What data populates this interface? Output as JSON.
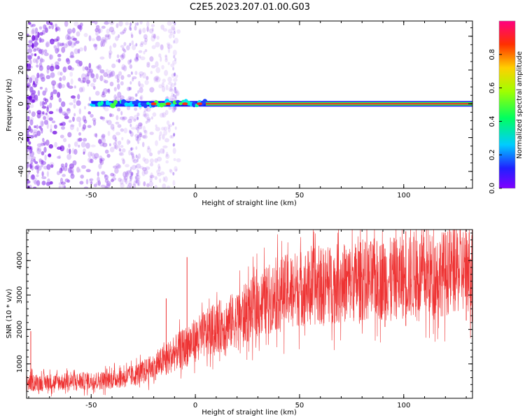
{
  "title": "C2E5.2023.207.01.00.G03",
  "chart_data": [
    {
      "type": "heatmap",
      "xlabel": "Height of straight line (km)",
      "ylabel": "Frequency (Hz)",
      "xlim": [
        -81,
        133
      ],
      "ylim": [
        -50,
        49
      ],
      "xticks": [
        -50,
        0,
        50,
        100
      ],
      "yticks": [
        -40,
        -20,
        0,
        20,
        40
      ],
      "colorbar": {
        "label": "Normalized spectral amplitude",
        "range": [
          0,
          1
        ],
        "ticks": [
          0.0,
          0.2,
          0.4,
          0.6,
          0.8
        ]
      },
      "features": {
        "noise_region_x": [
          -81,
          -20
        ],
        "carrier_start_x": -50,
        "carrier_freq_hz": 0,
        "strong_line_start_x": 5
      }
    },
    {
      "type": "line",
      "xlabel": "Height of straight line (km)",
      "ylabel": "SNR (10 * v/v)",
      "xlim": [
        -81,
        133
      ],
      "ylim": [
        0,
        4900
      ],
      "xticks": [
        -50,
        0,
        50,
        100
      ],
      "yticks": [
        1000,
        2000,
        3000,
        4000
      ],
      "series": [
        {
          "color": "#ee3333",
          "trend": [
            {
              "x": -81,
              "y": 450
            },
            {
              "x": -60,
              "y": 480
            },
            {
              "x": -45,
              "y": 520
            },
            {
              "x": -30,
              "y": 650
            },
            {
              "x": -20,
              "y": 900
            },
            {
              "x": -10,
              "y": 1300
            },
            {
              "x": 0,
              "y": 1700
            },
            {
              "x": 10,
              "y": 2050
            },
            {
              "x": 20,
              "y": 2300
            },
            {
              "x": 30,
              "y": 2700
            },
            {
              "x": 40,
              "y": 3050
            },
            {
              "x": 50,
              "y": 3200
            },
            {
              "x": 60,
              "y": 3250
            },
            {
              "x": 70,
              "y": 3350
            },
            {
              "x": 80,
              "y": 3400
            },
            {
              "x": 90,
              "y": 3450
            },
            {
              "x": 100,
              "y": 3500
            },
            {
              "x": 110,
              "y": 3550
            },
            {
              "x": 120,
              "y": 3650
            },
            {
              "x": 133,
              "y": 3800
            }
          ],
          "spikes": [
            {
              "x": -4,
              "y": 4100
            },
            {
              "x": -14,
              "y": 2900
            },
            {
              "x": -79,
              "y": 1950
            },
            {
              "x": 91,
              "y": 4350
            },
            {
              "x": 101,
              "y": 4850
            },
            {
              "x": 130,
              "y": 4700
            }
          ]
        }
      ]
    }
  ]
}
